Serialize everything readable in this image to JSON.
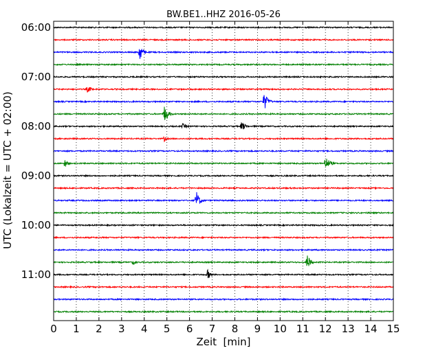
{
  "chart_data": {
    "type": "line",
    "title": "BW.BE1..HHZ 2016-05-26",
    "xlabel": "Zeit  [min]",
    "ylabel": "UTC (Lokalzeit = UTC + 02:00)",
    "xlim": [
      0,
      15
    ],
    "x_ticks": [
      "0",
      "1",
      "2",
      "3",
      "4",
      "5",
      "6",
      "7",
      "8",
      "9",
      "10",
      "11",
      "12",
      "13",
      "14",
      "15"
    ],
    "y_ticks": [
      {
        "label": "06:00",
        "row": 0
      },
      {
        "label": "07:00",
        "row": 4
      },
      {
        "label": "08:00",
        "row": 8
      },
      {
        "label": "09:00",
        "row": 12
      },
      {
        "label": "10:00",
        "row": 16
      },
      {
        "label": "11:00",
        "row": 20
      }
    ],
    "grid": "vertical dotted lines at each minute",
    "trace_colors": [
      "#000000",
      "#ff0000",
      "#0000ff",
      "#008000"
    ],
    "rows_count": 24,
    "trace_interval_min": 15,
    "events": [
      {
        "row": 2,
        "minute": 3.8,
        "amplitude": 1.0,
        "duration_min": 0.5
      },
      {
        "row": 5,
        "minute": 1.5,
        "amplitude": 0.35,
        "duration_min": 0.8
      },
      {
        "row": 6,
        "minute": 9.3,
        "amplitude": 1.0,
        "duration_min": 0.6
      },
      {
        "row": 7,
        "minute": 4.9,
        "amplitude": 1.0,
        "duration_min": 0.6
      },
      {
        "row": 8,
        "minute": 5.7,
        "amplitude": 0.3,
        "duration_min": 0.8
      },
      {
        "row": 8,
        "minute": 8.3,
        "amplitude": 0.5,
        "duration_min": 0.7
      },
      {
        "row": 9,
        "minute": 4.9,
        "amplitude": 0.35,
        "duration_min": 0.4
      },
      {
        "row": 11,
        "minute": 0.5,
        "amplitude": 0.45,
        "duration_min": 0.5
      },
      {
        "row": 11,
        "minute": 12.0,
        "amplitude": 0.7,
        "duration_min": 0.8
      },
      {
        "row": 14,
        "minute": 6.3,
        "amplitude": 1.0,
        "duration_min": 0.6
      },
      {
        "row": 19,
        "minute": 3.5,
        "amplitude": 0.3,
        "duration_min": 0.6
      },
      {
        "row": 19,
        "minute": 11.2,
        "amplitude": 0.9,
        "duration_min": 0.5
      },
      {
        "row": 20,
        "minute": 6.8,
        "amplitude": 0.55,
        "duration_min": 0.5
      },
      {
        "row": 14,
        "minute": 3.2,
        "amplitude": 0.12,
        "duration_min": 0.3
      },
      {
        "row": 10,
        "minute": 8.2,
        "amplitude": 0.1,
        "duration_min": 0.4
      },
      {
        "row": 17,
        "minute": 3.7,
        "amplitude": 0.1,
        "duration_min": 0.4
      }
    ]
  }
}
